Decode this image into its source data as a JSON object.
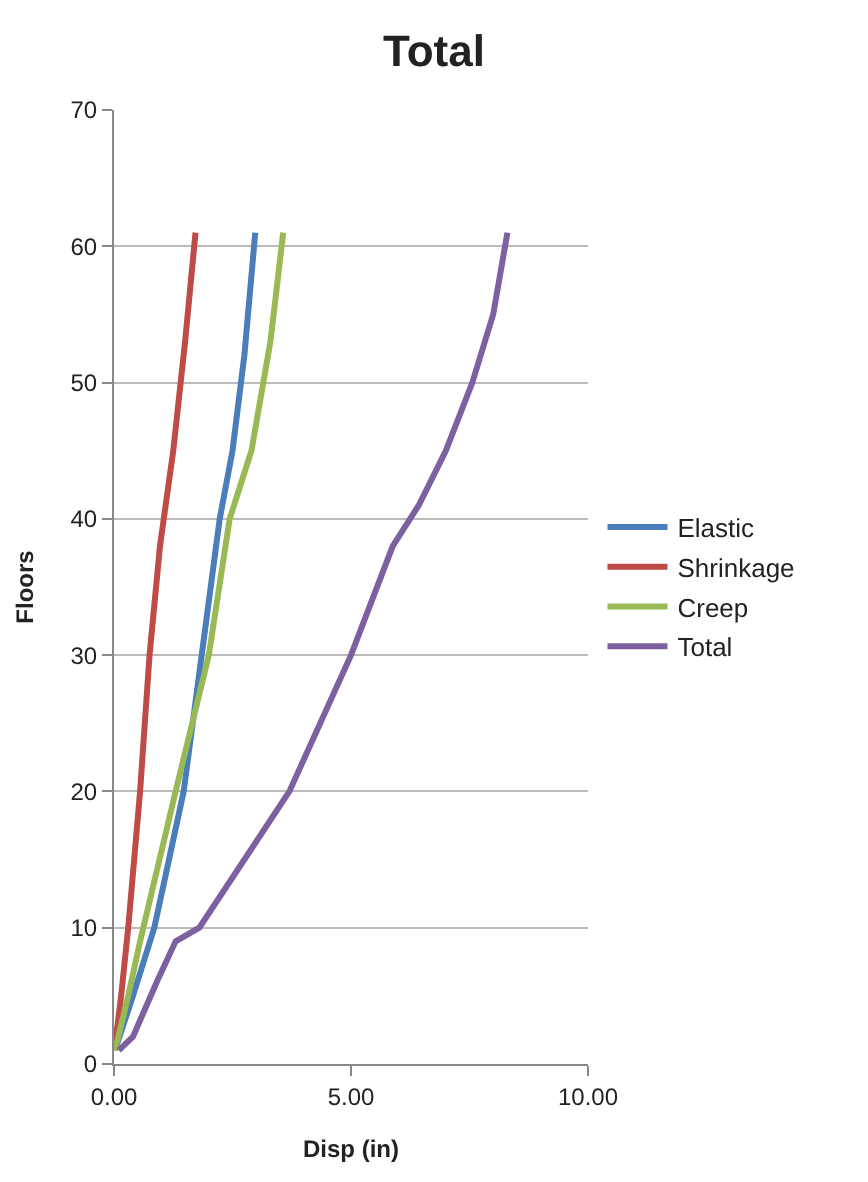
{
  "chart_data": {
    "type": "line",
    "title": "Total",
    "xlabel": "Disp (in)",
    "ylabel": "Floors",
    "xlim": [
      0,
      10
    ],
    "xticks": [
      {
        "value": 0,
        "label": "0.00"
      },
      {
        "value": 5,
        "label": "5.00"
      },
      {
        "value": 10,
        "label": "10.00"
      }
    ],
    "ylim": [
      0,
      70
    ],
    "yticks": [
      0,
      10,
      20,
      30,
      40,
      50,
      60,
      70
    ],
    "grid": "y",
    "legend": "right",
    "marker": "none",
    "line_style": "solid",
    "series": [
      {
        "name": "Elastic",
        "color": "#4a7ebb",
        "x": [
          0.02,
          0.4,
          0.85,
          1.47,
          1.85,
          2.23,
          2.5,
          2.75,
          2.98
        ],
        "values": [
          1,
          5,
          10,
          20,
          30,
          40,
          45,
          52,
          61
        ]
      },
      {
        "name": "Shrinkage",
        "color": "#be4b48",
        "x": [
          0.01,
          0.15,
          0.3,
          0.55,
          0.75,
          0.97,
          1.25,
          1.5,
          1.72
        ],
        "values": [
          1,
          5,
          10,
          20,
          30,
          38,
          45,
          53,
          61
        ]
      },
      {
        "name": "Creep",
        "color": "#98b954",
        "x": [
          0.02,
          0.3,
          0.55,
          1.3,
          2.0,
          2.44,
          2.9,
          3.3,
          3.57
        ],
        "values": [
          1,
          5,
          9,
          20,
          30,
          40,
          45,
          53,
          61
        ]
      },
      {
        "name": "Total",
        "color": "#7d60a0",
        "x": [
          0.1,
          0.4,
          0.9,
          1.3,
          1.8,
          3.7,
          5.0,
          5.88,
          6.43,
          7.0,
          7.56,
          8.0,
          8.3
        ],
        "values": [
          1,
          2,
          6,
          9,
          10,
          20,
          30,
          38,
          41,
          45,
          50,
          55,
          61
        ]
      }
    ]
  }
}
